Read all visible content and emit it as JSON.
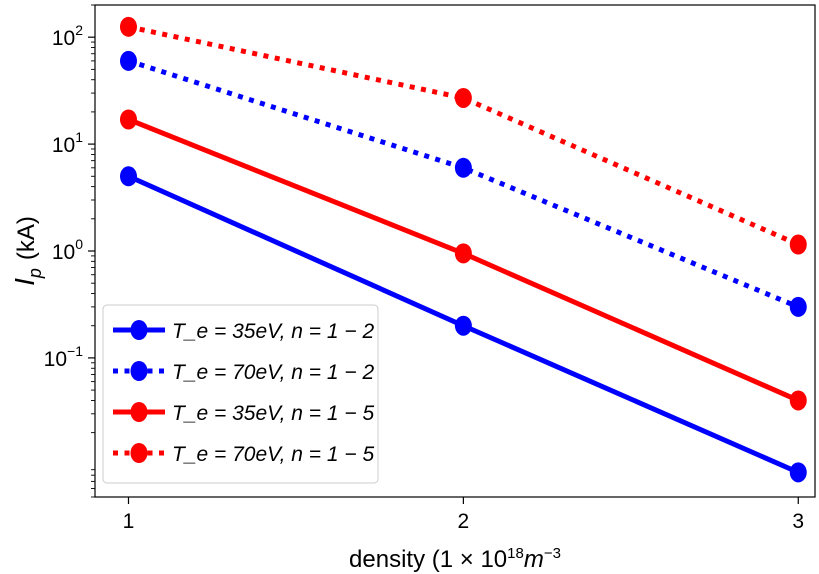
{
  "chart_data": {
    "type": "line",
    "title": "",
    "xlabel": "density (1 × 10¹⁸m⁻³)",
    "ylabel": "I_p (kA)",
    "ylabel_main": "I",
    "ylabel_sub": "p",
    "ylabel_unit": "(kA)",
    "yscale": "log",
    "x": [
      1,
      2,
      3
    ],
    "xlim": [
      0.9,
      3.05
    ],
    "ylim": [
      0.005,
      200
    ],
    "xticks": [
      1,
      2,
      3
    ],
    "xtick_labels": [
      "1",
      "2",
      "3"
    ],
    "yticks": [
      {
        "value": 100,
        "base": "10",
        "exp": "2"
      },
      {
        "value": 10,
        "base": "10",
        "exp": "1"
      },
      {
        "value": 1,
        "base": "10",
        "exp": "0"
      },
      {
        "value": 0.1,
        "base": "10",
        "exp": "−1"
      }
    ],
    "grid": false,
    "legend_position": "lower-left",
    "series": [
      {
        "name": "T_e = 35eV, n = 1 − 2",
        "color": "#0000ff",
        "linestyle": "solid",
        "values": [
          5,
          0.2,
          0.0085
        ]
      },
      {
        "name": "T_e = 70eV, n = 1 − 2",
        "color": "#0000ff",
        "linestyle": "dotted",
        "values": [
          60,
          6,
          0.3
        ]
      },
      {
        "name": "T_e = 35eV, n = 1 − 5",
        "color": "#ff0000",
        "linestyle": "solid",
        "values": [
          17,
          0.95,
          0.04
        ]
      },
      {
        "name": "T_e = 70eV, n = 1 − 5",
        "color": "#ff0000",
        "linestyle": "dotted",
        "values": [
          125,
          27,
          1.15
        ]
      }
    ]
  }
}
